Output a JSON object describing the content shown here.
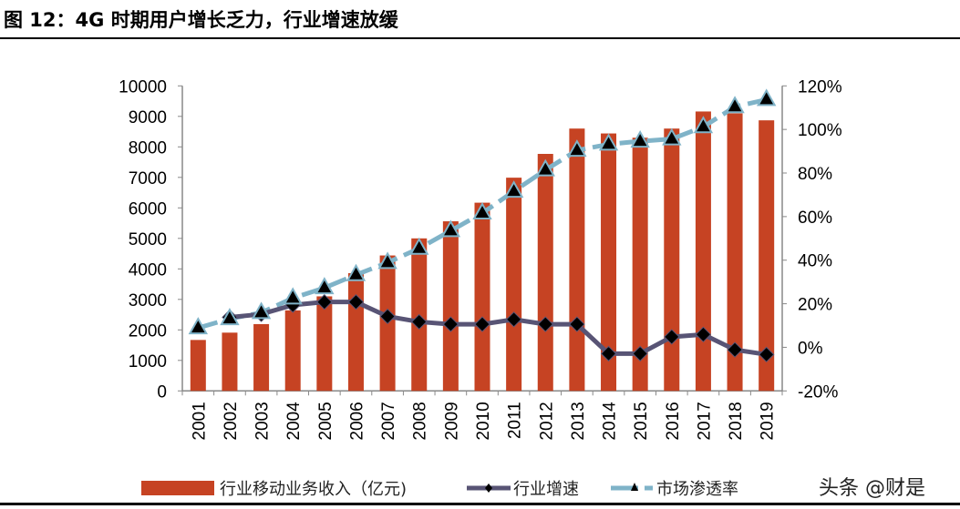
{
  "title": "图 12：4G 时期用户增长乏力，行业增速放缓",
  "watermark": "头条 @财是",
  "chart_data": {
    "type": "bar",
    "categories": [
      "2001",
      "2002",
      "2003",
      "2004",
      "2005",
      "2006",
      "2007",
      "2008",
      "2009",
      "2010",
      "2011",
      "2012",
      "2013",
      "2014",
      "2015",
      "2016",
      "2017",
      "2018",
      "2019"
    ],
    "y_left": {
      "range": [
        0,
        10000
      ],
      "ticks": [
        "0",
        "1000",
        "2000",
        "3000",
        "4000",
        "5000",
        "6000",
        "7000",
        "8000",
        "9000",
        "10000"
      ]
    },
    "y_right": {
      "range": [
        -20,
        120
      ],
      "ticks": [
        "-20%",
        "0%",
        "20%",
        "40%",
        "60%",
        "80%",
        "100%",
        "120%"
      ]
    },
    "grid": false,
    "legend": "bottom",
    "series": [
      {
        "name": "行业移动业务收入（亿元)",
        "type": "bar",
        "axis": "left",
        "color": "#C64323",
        "values": [
          1670,
          1910,
          2190,
          2640,
          3100,
          3860,
          4440,
          5000,
          5560,
          6170,
          6990,
          7770,
          8600,
          8440,
          8300,
          8600,
          9160,
          9100,
          8870
        ]
      },
      {
        "name": "行业增速",
        "type": "line",
        "axis": "right",
        "color": "#585475",
        "marker": "diamond",
        "values": [
          null,
          13.8,
          15.2,
          19.4,
          20.8,
          20.8,
          14.2,
          11.7,
          10.6,
          10.6,
          12.8,
          10.6,
          10.6,
          -2.9,
          -2.9,
          4.8,
          5.9,
          -1.1,
          -3.3
        ]
      },
      {
        "name": "市场渗透率",
        "type": "line",
        "axis": "right",
        "color": "#7FB3C8",
        "marker": "triangle",
        "dashed": true,
        "values": [
          8.9,
          13.1,
          15.9,
          22.6,
          27.3,
          33.3,
          38.9,
          45.4,
          53.5,
          61.6,
          71.6,
          81.4,
          90.4,
          93.2,
          94.6,
          95.6,
          101.2,
          110.4,
          113.7
        ]
      }
    ]
  }
}
